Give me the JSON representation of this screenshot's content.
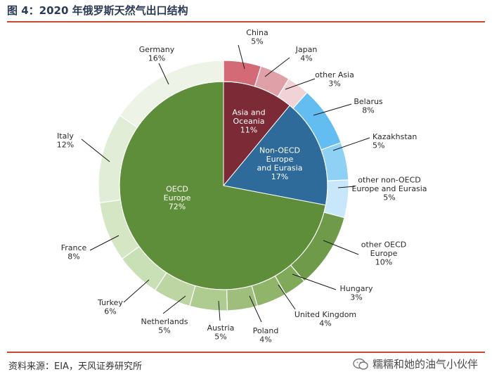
{
  "header": {
    "title": "图 4：2020 年俄罗斯天然气出口结构"
  },
  "footer": {
    "source": "资料来源：EIA，天风证券研究所",
    "watermark": "糯糯和她的油气小伙伴"
  },
  "chart_data": {
    "type": "pie",
    "title": "图 4：2020 年俄罗斯天然气出口结构",
    "inner": [
      {
        "label": "OECD\nEurope\n72%",
        "name": "OECD Europe",
        "value": 72,
        "color": "#5f8e3a"
      },
      {
        "label": "Asia and\nOceania\n11%",
        "name": "Asia and Oceania",
        "value": 11,
        "color": "#7b2a36"
      },
      {
        "label": "Non-OECD\nEurope\nand Eurasia\n17%",
        "name": "Non-OECD Europe and Eurasia",
        "value": 17,
        "color": "#2e6a9a"
      }
    ],
    "outer": [
      {
        "label": "China\n5%",
        "name": "China",
        "value": 5,
        "color": "#d46a76"
      },
      {
        "label": "Japan\n4%",
        "name": "Japan",
        "value": 4,
        "color": "#e0a0a8"
      },
      {
        "label": "other Asia\n3%",
        "name": "other Asia",
        "value": 3,
        "color": "#f1d2d6"
      },
      {
        "label": "Belarus\n8%",
        "name": "Belarus",
        "value": 8,
        "color": "#63bdf1"
      },
      {
        "label": "Kazakhstan\n5%",
        "name": "Kazakhstan",
        "value": 5,
        "color": "#8fd0f5"
      },
      {
        "label": "other non-OECD\nEurope and Eurasia\n5%",
        "name": "other non-OECD Europe and Eurasia",
        "value": 5,
        "color": "#c8e7fa"
      },
      {
        "label": "other OECD\nEurope\n10%",
        "name": "other OECD Europe",
        "value": 10,
        "color": "#6f9a4a"
      },
      {
        "label": "Hungary\n3%",
        "name": "Hungary",
        "value": 3,
        "color": "#80a95a"
      },
      {
        "label": "United Kingdom\n4%",
        "name": "United Kingdom",
        "value": 4,
        "color": "#8fb46a"
      },
      {
        "label": "Poland\n4%",
        "name": "Poland",
        "value": 4,
        "color": "#9fbe7c"
      },
      {
        "label": "Austria\n5%",
        "name": "Austria",
        "value": 5,
        "color": "#aecb90"
      },
      {
        "label": "Netherlands\n5%",
        "name": "Netherlands",
        "value": 5,
        "color": "#bcd5a3"
      },
      {
        "label": "Turkey\n6%",
        "name": "Turkey",
        "value": 6,
        "color": "#c9dfb6"
      },
      {
        "label": "France\n8%",
        "name": "France",
        "value": 8,
        "color": "#d5e6c5"
      },
      {
        "label": "Italy\n12%",
        "name": "Italy",
        "value": 12,
        "color": "#e1edd6"
      },
      {
        "label": "Germany\n16%",
        "name": "Germany",
        "value": 16,
        "color": "#edf4e7"
      }
    ]
  }
}
